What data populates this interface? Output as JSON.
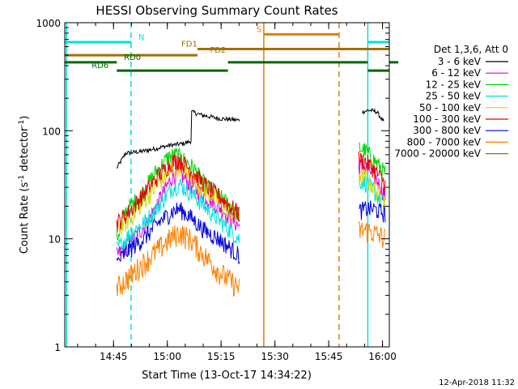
{
  "chart_data": {
    "type": "line",
    "title": "HESSI Observing Summary Count Rates",
    "ylabel_main": "Count Rate (s",
    "ylabel_sup1": "-1",
    "ylabel_mid": " detector",
    "ylabel_sup2": "-1",
    "ylabel_end": ")",
    "xlabel": "Start Time (13-Oct-17 14:34:22)",
    "y_scale": "log",
    "ylim": [
      1,
      1000
    ],
    "xlim_minutes": [
      -3.0,
      87.5
    ],
    "x_ticks": [
      {
        "label": "14:45",
        "t": 10.6
      },
      {
        "label": "15:00",
        "t": 25.6
      },
      {
        "label": "15:15",
        "t": 40.6
      },
      {
        "label": "15:30",
        "t": 55.6
      },
      {
        "label": "15:45",
        "t": 70.6
      },
      {
        "label": "16:00",
        "t": 85.6
      }
    ],
    "y_ticks": [
      {
        "label": "1",
        "v": 1
      },
      {
        "label": "10",
        "v": 10
      },
      {
        "label": "100",
        "v": 100
      },
      {
        "label": "1000",
        "v": 1000
      }
    ],
    "grid": false,
    "legend": {
      "placement": "right",
      "header": "Det 1,3,6, Att 0"
    },
    "series": [
      {
        "name": "3 - 6 keV",
        "color": "#000000",
        "segments": [
          {
            "x": [
              11.5,
              14,
              18,
              22,
              26,
              30,
              32.2,
              32.3,
              35,
              40,
              45.7
            ],
            "y": [
              45,
              62,
              64,
              68,
              73,
              76,
              80,
              150,
              140,
              130,
              125
            ]
          },
          {
            "x": [
              80,
              82,
              84,
              86
            ],
            "y": [
              150,
              155,
              150,
              120
            ]
          }
        ]
      },
      {
        "name": "6 - 12 keV",
        "color": "#e000e0",
        "segments": [
          {
            "x": [
              11.5,
              16,
              20,
              24,
              27,
              29,
              32,
              36,
              40,
              45.7
            ],
            "y": [
              7,
              10,
              14,
              25,
              38,
              41,
              32,
              25,
              20,
              13
            ]
          },
          {
            "x": [
              79,
              81,
              83,
              86.5
            ],
            "y": [
              48,
              45,
              40,
              25
            ]
          }
        ]
      },
      {
        "name": "12 - 25 keV",
        "color": "#00d800",
        "segments": [
          {
            "x": [
              11.5,
              14,
              18,
              22,
              26,
              28,
              30,
              33,
              36,
              40,
              45.7
            ],
            "y": [
              10,
              18,
              25,
              40,
              58,
              60,
              55,
              45,
              32,
              25,
              17
            ]
          },
          {
            "x": [
              79,
              81,
              83,
              86.5
            ],
            "y": [
              70,
              65,
              55,
              40
            ]
          }
        ]
      },
      {
        "name": "25 - 50 keV",
        "color": "#00e0e0",
        "segments": [
          {
            "x": [
              11.5,
              15,
              19,
              23,
              27,
              29,
              32,
              36,
              40,
              45.7
            ],
            "y": [
              8,
              11,
              14,
              20,
              30,
              32,
              27,
              20,
              15,
              10
            ]
          },
          {
            "x": [
              79,
              81,
              83,
              86.5
            ],
            "y": [
              35,
              33,
              28,
              20
            ]
          }
        ]
      },
      {
        "name": "50 - 100 keV",
        "color": "#d8d800",
        "segments": [
          {
            "x": [
              11.5,
              15,
              19,
              23,
              27,
              29,
              32,
              36,
              40,
              45.7
            ],
            "y": [
              12,
              15,
              22,
              32,
              44,
              46,
              38,
              28,
              22,
              15
            ]
          },
          {
            "x": [
              79,
              81,
              83,
              86.5
            ],
            "y": [
              40,
              37,
              30,
              22
            ]
          }
        ]
      },
      {
        "name": "100 - 300 keV",
        "color": "#e80000",
        "segments": [
          {
            "x": [
              11.5,
              15,
              19,
              23,
              27,
              29,
              32,
              36,
              40,
              45.7
            ],
            "y": [
              14,
              18,
              26,
              38,
              52,
              54,
              44,
              32,
              25,
              17
            ]
          },
          {
            "x": [
              79,
              81,
              83,
              86.5
            ],
            "y": [
              55,
              52,
              45,
              32
            ]
          }
        ]
      },
      {
        "name": "300 - 800 keV",
        "color": "#0000e0",
        "segments": [
          {
            "x": [
              11.5,
              15,
              19,
              23,
              27,
              29,
              32,
              36,
              40,
              45.7
            ],
            "y": [
              6,
              8,
              10,
              14,
              18,
              19,
              16,
              12,
              10,
              7
            ]
          },
          {
            "x": [
              79,
              81,
              83,
              86.5
            ],
            "y": [
              18,
              19,
              19,
              17
            ]
          }
        ]
      },
      {
        "name": "800 - 7000 keV",
        "color": "#ff8000",
        "segments": [
          {
            "x": [
              11.5,
              15,
              19,
              23,
              27,
              29,
              32,
              36,
              40,
              45.7
            ],
            "y": [
              3.5,
              4.5,
              6,
              8,
              10.5,
              11.5,
              10,
              7,
              5,
              3.5
            ]
          },
          {
            "x": [
              79,
              81,
              83,
              86.5
            ],
            "y": [
              12,
              12,
              11.5,
              10
            ]
          }
        ]
      },
      {
        "name": "7000 - 20000 keV",
        "color": "#a07000",
        "segments": []
      }
    ],
    "annotations": {
      "vlines": [
        {
          "t": -2.5,
          "color": "#00e0e0",
          "dash": false
        },
        {
          "t": 15.5,
          "color": "#00e0e0",
          "dash": true
        },
        {
          "t": 81.5,
          "color": "#00e0e0",
          "dash": false
        },
        {
          "t": 99.5,
          "color": "#00e0e0",
          "dash": true
        },
        {
          "t": 52.5,
          "color": "#e08000",
          "dash": false
        },
        {
          "t": 73.5,
          "color": "#e08000",
          "dash": true
        }
      ],
      "hbars": [
        {
          "label": "N",
          "color": "#00e0e0",
          "y": 660,
          "segments": [
            [
              -3,
              15.5
            ],
            [
              81.5,
              99.5
            ]
          ],
          "label_t": 17.5
        },
        {
          "label": "S",
          "color": "#e08000",
          "y": 780,
          "segments": [
            [
              52.5,
              73.5
            ]
          ],
          "label_t": 50.5
        },
        {
          "label": "FD1",
          "color": "#a07000",
          "y": 570,
          "segments": [
            [
              34,
              99.5
            ]
          ],
          "label_t": 29.5
        },
        {
          "label": "FD2",
          "color": "#a07000",
          "y": 500,
          "segments": [
            [
              -3,
              34
            ]
          ],
          "label_t": 37.5
        },
        {
          "label": "RD0",
          "color": "#006800",
          "y": 430,
          "segments": [
            [
              -3,
              11.5
            ],
            [
              42.5,
              81.5
            ],
            [
              90,
              99.5
            ]
          ],
          "label_t": 13.5
        },
        {
          "label": "RD6",
          "color": "#006800",
          "y": 360,
          "segments": [
            [
              11.5,
              42.5
            ],
            [
              81.5,
              90
            ]
          ],
          "label_t": 4.5
        }
      ]
    },
    "footer": "12-Apr-2018 11:32"
  }
}
